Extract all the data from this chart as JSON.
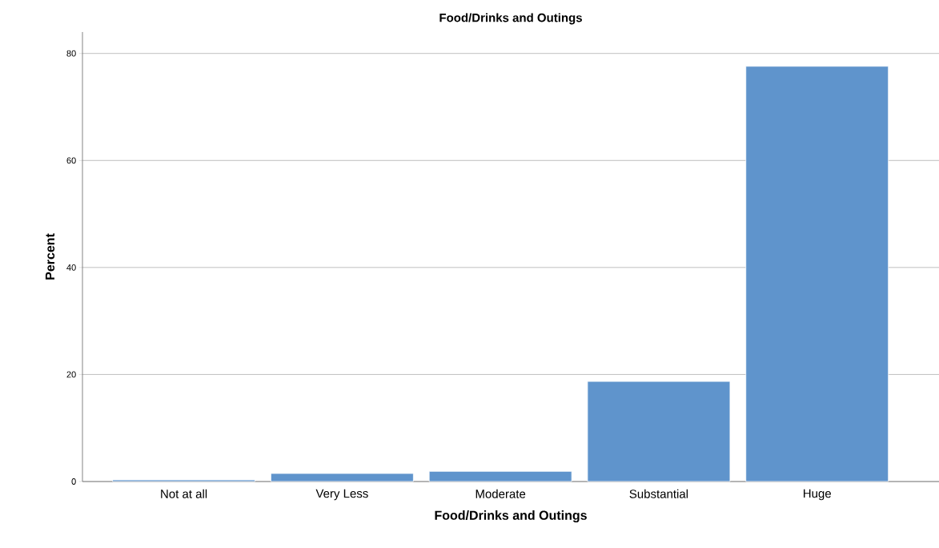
{
  "chart_data": {
    "type": "bar",
    "title": "Food/Drinks and Outings",
    "xlabel": "Food/Drinks and Outings",
    "ylabel": "Percent",
    "categories": [
      "Not at all",
      "Very Less",
      "Moderate",
      "Substantial",
      "Huge"
    ],
    "values": [
      0.3,
      1.5,
      1.9,
      18.7,
      77.6
    ],
    "color": "#5f94cc",
    "ylim": [
      0,
      84
    ],
    "yticks": [
      0,
      20,
      40,
      60,
      80
    ],
    "grid": "y"
  }
}
